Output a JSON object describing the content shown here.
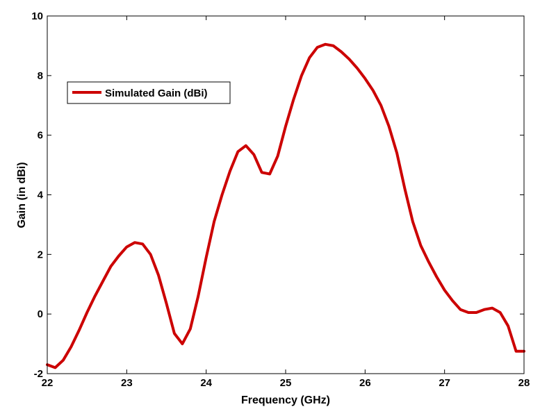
{
  "chart_data": {
    "type": "line",
    "title": "",
    "xlabel": "Frequency (GHz)",
    "ylabel": "Gain (in dBi)",
    "xlim": [
      22,
      28
    ],
    "ylim": [
      -2,
      10
    ],
    "xticks": [
      22,
      23,
      24,
      25,
      26,
      27,
      28
    ],
    "yticks": [
      -2,
      0,
      2,
      4,
      6,
      8,
      10
    ],
    "grid": false,
    "legend_placement": "upper-left",
    "colors": {
      "series": "#cc0000",
      "axes": "#000000",
      "background": "#ffffff"
    },
    "series": [
      {
        "name": "Simulated Gain (dBi)",
        "x": [
          22.0,
          22.1,
          22.2,
          22.3,
          22.4,
          22.5,
          22.6,
          22.7,
          22.8,
          22.9,
          23.0,
          23.1,
          23.2,
          23.3,
          23.4,
          23.5,
          23.6,
          23.7,
          23.8,
          23.9,
          24.0,
          24.1,
          24.2,
          24.3,
          24.4,
          24.5,
          24.6,
          24.7,
          24.8,
          24.9,
          25.0,
          25.1,
          25.2,
          25.3,
          25.4,
          25.5,
          25.6,
          25.7,
          25.8,
          25.9,
          26.0,
          26.1,
          26.2,
          26.3,
          26.4,
          26.5,
          26.6,
          26.7,
          26.8,
          26.9,
          27.0,
          27.1,
          27.2,
          27.3,
          27.4,
          27.5,
          27.6,
          27.7,
          27.8,
          27.9,
          28.0
        ],
        "y": [
          -1.7,
          -1.8,
          -1.55,
          -1.1,
          -0.55,
          0.05,
          0.6,
          1.1,
          1.6,
          1.95,
          2.25,
          2.4,
          2.35,
          2.0,
          1.3,
          0.35,
          -0.65,
          -1.0,
          -0.5,
          0.6,
          1.9,
          3.1,
          4.0,
          4.8,
          5.45,
          5.65,
          5.35,
          4.75,
          4.7,
          5.3,
          6.3,
          7.2,
          8.0,
          8.6,
          8.95,
          9.05,
          9.0,
          8.8,
          8.55,
          8.25,
          7.9,
          7.5,
          7.0,
          6.3,
          5.4,
          4.2,
          3.1,
          2.3,
          1.75,
          1.25,
          0.8,
          0.45,
          0.15,
          0.05,
          0.05,
          0.15,
          0.2,
          0.05,
          -0.4,
          -1.25,
          -1.25
        ]
      }
    ]
  }
}
